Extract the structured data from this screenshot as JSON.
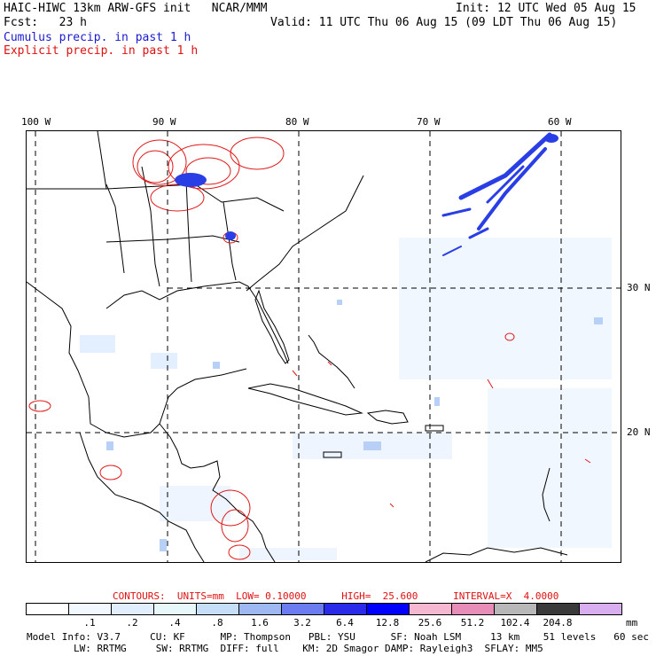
{
  "header": {
    "line1_left": "HAIC-HIWC 13km ARW-GFS init   NCAR/MMM",
    "line1_right": "Init: 12 UTC Wed 05 Aug 15",
    "line2_left": "Fcst:   23 h",
    "line2_right": "Valid: 11 UTC Thu 06 Aug 15 (09 LDT Thu 06 Aug 15)",
    "line3": "Cumulus precip. in past 1 h",
    "line4": "Explicit precip. in past 1 h"
  },
  "map": {
    "lon_labels": [
      "100 W",
      "90 W",
      "80 W",
      "70 W",
      "60 W"
    ],
    "lat_labels": [
      "30 N",
      "20 N"
    ]
  },
  "contours_info": {
    "text": "CONTOURS:  UNITS=mm  LOW= 0.10000      HIGH=  25.600      INTERVAL=X  4.0000"
  },
  "colorbar": {
    "ticks": [
      ".1",
      ".2",
      ".4",
      ".8",
      "1.6",
      "3.2",
      "6.4",
      "12.8",
      "25.6",
      "51.2",
      "102.4",
      "204.8"
    ],
    "unit": "mm",
    "colors": [
      "#ffffff",
      "#f2f8ff",
      "#e0eeff",
      "#e6f8fa",
      "#c6def8",
      "#9eb8f4",
      "#6a7cf0",
      "#2a2aea",
      "#0000ff",
      "#f6b8d0",
      "#e88cb8",
      "#b8b8b8",
      "#3a3a3a",
      "#d9aef0"
    ]
  },
  "footer": {
    "line1": "Model Info: V3.7     CU: KF      MP: Thompson   PBL: YSU      SF: Noah LSM     13 km    51 levels   60 sec",
    "line2": "        LW: RRTMG     SW: RRTMG  DIFF: full    KM: 2D Smagor DAMP: Rayleigh3  SFLAY: MM5"
  }
}
